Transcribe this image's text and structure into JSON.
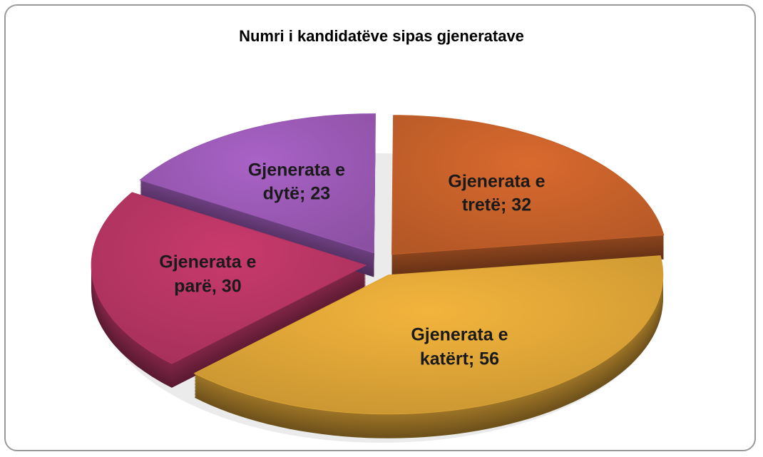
{
  "chart_data": {
    "type": "pie",
    "title": "Numri i kandidatëve sipas gjeneratave",
    "values": [
      30,
      23,
      32,
      56
    ],
    "value_labels": [
      "Gjenerata e parë, 30",
      "Gjenerata e dytë; 23",
      "Gjenerata e tretë; 32",
      "Gjenerata e katërt; 56"
    ],
    "colors": [
      "#c83a6c",
      "#a962c6",
      "#d96a2e",
      "#f3b43c"
    ]
  }
}
